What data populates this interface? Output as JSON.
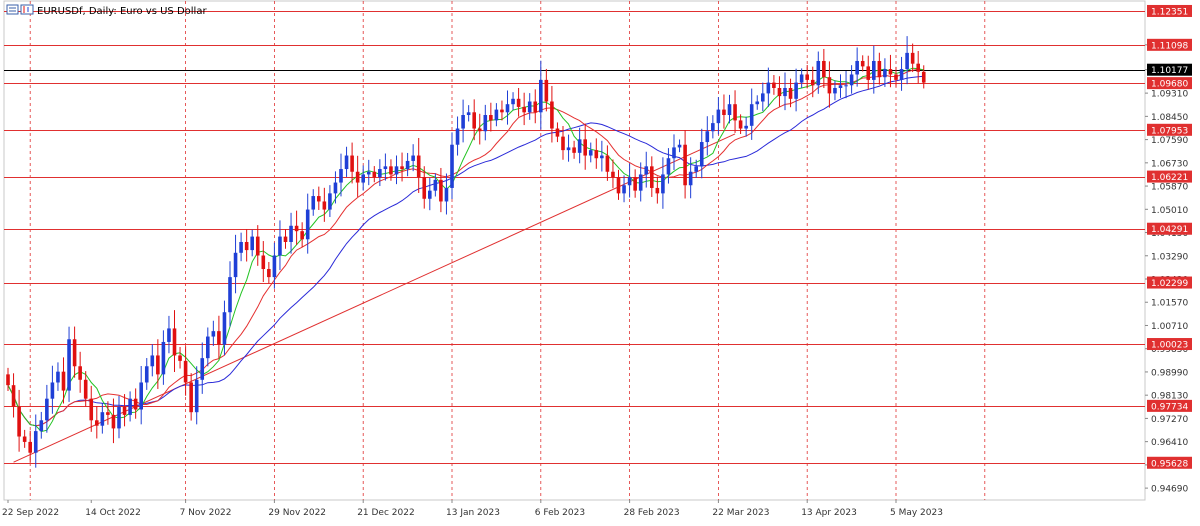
{
  "header": {
    "title": "EURUSDf, Daily:  Euro vs US Dollar"
  },
  "colors": {
    "bull": "#1f3fd6",
    "bear": "#e01010",
    "ma_fast": "#22c322",
    "ma_mid": "#e53030",
    "ma_slow": "#2a2ad8",
    "level_line": "#e03030",
    "current_line": "#000000",
    "grid_v": "#e03030"
  },
  "chart_data": {
    "type": "candlestick",
    "symbol": "EURUSDf",
    "timeframe": "Daily",
    "description": "Euro vs US Dollar",
    "x_labels": [
      "22 Sep 2022",
      "14 Oct 2022",
      "7 Nov 2022",
      "29 Nov 2022",
      "21 Dec 2022",
      "13 Jan 2023",
      "6 Feb 2023",
      "28 Feb 2023",
      "22 Mar 2023",
      "13 Apr 2023",
      "5 May 2023"
    ],
    "x_label_bar_index": [
      0,
      15,
      32,
      48,
      64,
      80,
      96,
      112,
      128,
      144,
      160
    ],
    "y_ticks": [
      "1.11098",
      "1.10177",
      "1.09310",
      "1.08450",
      "1.07590",
      "1.06730",
      "1.05870",
      "1.05010",
      "1.04150",
      "1.03290",
      "1.02430",
      "1.01570",
      "1.00710",
      "0.99850",
      "0.98990",
      "0.98130",
      "0.97270",
      "0.96410",
      "0.95550",
      "0.94690"
    ],
    "ylim": [
      0.9425,
      1.1272
    ],
    "horizontal_levels": [
      {
        "value": 1.12351,
        "label": "1.12351"
      },
      {
        "value": 1.11098,
        "label": "1.11098"
      },
      {
        "value": 1.0968,
        "label": "1.09680"
      },
      {
        "value": 1.07953,
        "label": "1.07953"
      },
      {
        "value": 1.06221,
        "label": "1.06221"
      },
      {
        "value": 1.04291,
        "label": "1.04291"
      },
      {
        "value": 1.02299,
        "label": "1.02299"
      },
      {
        "value": 1.00023,
        "label": "1.00023"
      },
      {
        "value": 0.97734,
        "label": "0.97734"
      },
      {
        "value": 0.95628,
        "label": "0.95628"
      }
    ],
    "current_price": {
      "value": 1.10177,
      "label": "1.10177"
    },
    "trendline": {
      "from": {
        "bar": 1,
        "price": 0.9565
      },
      "to": {
        "bar": 131,
        "price": 1.078
      }
    },
    "vertical_gridlines_at_bar": [
      4,
      32,
      48,
      64,
      80,
      96,
      112,
      128,
      144,
      160,
      176
    ],
    "closes": [
      0.985,
      0.977,
      0.966,
      0.964,
      0.96,
      0.968,
      0.972,
      0.98,
      0.986,
      0.99,
      0.983,
      1.002,
      0.992,
      0.987,
      0.98,
      0.972,
      0.97,
      0.975,
      0.974,
      0.969,
      0.977,
      0.974,
      0.98,
      0.976,
      0.986,
      0.992,
      0.996,
      0.989,
      1.001,
      1.006,
      0.996,
      0.994,
      0.986,
      0.975,
      0.987,
      0.995,
      1.003,
      1.005,
      1.0,
      1.012,
      1.025,
      1.034,
      1.038,
      1.035,
      1.04,
      1.033,
      1.028,
      1.025,
      1.033,
      1.04,
      1.038,
      1.044,
      1.042,
      1.039,
      1.05,
      1.055,
      1.053,
      1.05,
      1.056,
      1.06,
      1.065,
      1.07,
      1.064,
      1.06,
      1.063,
      1.064,
      1.062,
      1.065,
      1.066,
      1.063,
      1.066,
      1.065,
      1.068,
      1.07,
      1.062,
      1.054,
      1.057,
      1.061,
      1.053,
      1.058,
      1.074,
      1.08,
      1.085,
      1.086,
      1.08,
      1.079,
      1.085,
      1.083,
      1.087,
      1.086,
      1.089,
      1.091,
      1.088,
      1.086,
      1.09,
      1.086,
      1.098,
      1.09,
      1.08,
      1.077,
      1.072,
      1.073,
      1.071,
      1.076,
      1.07,
      1.072,
      1.069,
      1.07,
      1.064,
      1.062,
      1.056,
      1.059,
      1.062,
      1.057,
      1.063,
      1.066,
      1.058,
      1.056,
      1.063,
      1.069,
      1.073,
      1.074,
      1.059,
      1.064,
      1.066,
      1.075,
      1.079,
      1.082,
      1.087,
      1.085,
      1.089,
      1.083,
      1.08,
      1.081,
      1.089,
      1.09,
      1.093,
      1.097,
      1.095,
      1.092,
      1.095,
      1.091,
      1.097,
      1.1,
      1.098,
      1.096,
      1.105,
      1.099,
      1.093,
      1.095,
      1.096,
      1.096,
      1.1,
      1.105,
      1.103,
      1.098,
      1.105,
      1.099,
      1.102,
      1.1,
      1.098,
      1.102,
      1.108,
      1.104,
      1.101,
      1.097
    ]
  }
}
